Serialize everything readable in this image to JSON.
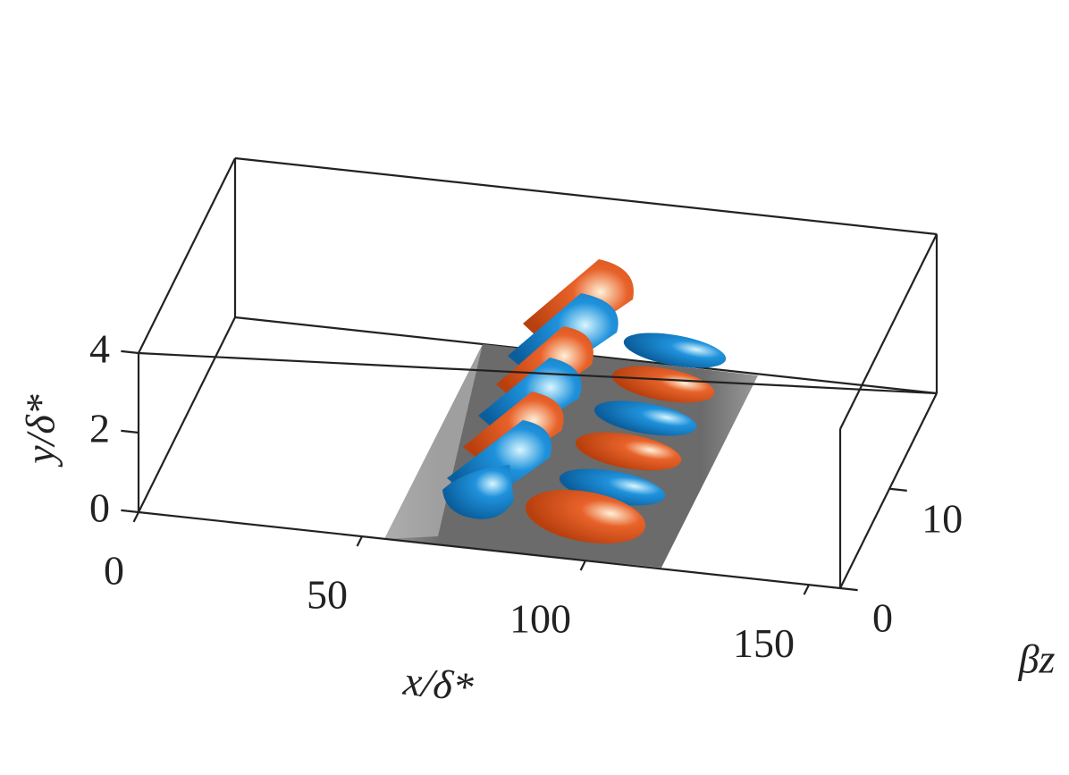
{
  "chart_data": {
    "type": "isosurface3d",
    "xlabel": "x/δ*",
    "ylabel": "y/δ*",
    "zlabel": "βz",
    "xlim": [
      0,
      157
    ],
    "ylim": [
      0,
      4
    ],
    "zlim": [
      0,
      19.6
    ],
    "xticks": [
      0,
      50,
      100,
      150
    ],
    "yticks": [
      0,
      2,
      4
    ],
    "zticks": [
      0,
      10
    ],
    "colors": [
      "#e8622a",
      "#1f92dc"
    ]
  }
}
